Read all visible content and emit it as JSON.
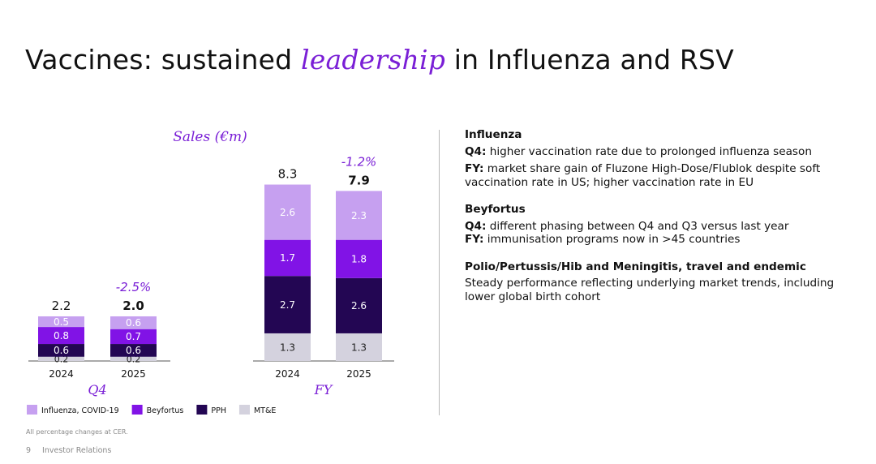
{
  "title": {
    "before": "Vaccines: sustained ",
    "emph": "leadership",
    "after": " in Influenza and RSV"
  },
  "chart_data": {
    "type": "bar",
    "stacked": true,
    "title": "Sales (€m)",
    "segment_order": [
      "MT&E",
      "PPH",
      "Beyfortus",
      "Influenza, COVID-19"
    ],
    "colors": {
      "Influenza, COVID-19": "#c6a0f0",
      "Beyfortus": "#8113e6",
      "PPH": "#230653",
      "MT&E": "#d4d2de"
    },
    "legend": [
      "Influenza, COVID-19",
      "Beyfortus",
      "PPH",
      "MT&E"
    ],
    "groups": [
      {
        "label": "Q4",
        "change": "-2.5%",
        "bars": [
          {
            "year": "2024",
            "total": "2.2",
            "bold": false,
            "segments": [
              {
                "name": "MT&E",
                "value": 0.2
              },
              {
                "name": "PPH",
                "value": 0.6
              },
              {
                "name": "Beyfortus",
                "value": 0.8
              },
              {
                "name": "Influenza, COVID-19",
                "value": 0.5
              }
            ]
          },
          {
            "year": "2025",
            "total": "2.0",
            "bold": true,
            "segments": [
              {
                "name": "MT&E",
                "value": 0.2
              },
              {
                "name": "PPH",
                "value": 0.6
              },
              {
                "name": "Beyfortus",
                "value": 0.7
              },
              {
                "name": "Influenza, COVID-19",
                "value": 0.6
              }
            ]
          }
        ]
      },
      {
        "label": "FY",
        "change": "-1.2%",
        "bars": [
          {
            "year": "2024",
            "total": "8.3",
            "bold": false,
            "segments": [
              {
                "name": "MT&E",
                "value": 1.3
              },
              {
                "name": "PPH",
                "value": 2.7
              },
              {
                "name": "Beyfortus",
                "value": 1.7
              },
              {
                "name": "Influenza, COVID-19",
                "value": 2.6
              }
            ]
          },
          {
            "year": "2025",
            "total": "7.9",
            "bold": true,
            "segments": [
              {
                "name": "MT&E",
                "value": 1.3
              },
              {
                "name": "PPH",
                "value": 2.6
              },
              {
                "name": "Beyfortus",
                "value": 1.8
              },
              {
                "name": "Influenza, COVID-19",
                "value": 2.3
              }
            ]
          }
        ]
      }
    ]
  },
  "panel": {
    "sections": [
      {
        "heading": "Influenza",
        "lines": [
          {
            "label": "Q4:",
            "text": " higher vaccination rate due to prolonged influenza season"
          },
          {
            "label": "FY:",
            "text": " market share gain of Fluzone High-Dose/Flublok despite soft vaccination rate in US; higher vaccination rate in EU"
          }
        ]
      },
      {
        "heading": "Beyfortus",
        "lines": [
          {
            "label": "Q4:",
            "text": " different phasing between Q4 and Q3 versus last year"
          },
          {
            "label": "FY:",
            "text": " immunisation programs now in >45 countries"
          }
        ]
      },
      {
        "heading": "Polio/Pertussis/Hib and Meningitis, travel and endemic",
        "lines": [
          {
            "label": "",
            "text": "Steady performance reflecting underlying market trends, including lower global birth cohort"
          }
        ]
      }
    ]
  },
  "footnote": "All percentage changes at CER.",
  "footer": {
    "page": "9",
    "section": "Investor Relations"
  }
}
